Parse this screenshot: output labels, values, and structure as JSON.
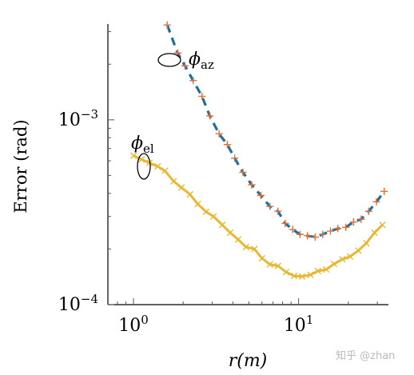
{
  "watermark": "知乎 @zhan",
  "chart_data": {
    "type": "line",
    "xscale": "log",
    "yscale": "log",
    "xlim": [
      0.7,
      35
    ],
    "ylim": [
      0.0001,
      0.0033
    ],
    "xlabel": "r(m)",
    "ylabel": "Error (rad)",
    "x_ticks": [
      {
        "value": 1,
        "base": "10",
        "exp": "0"
      },
      {
        "value": 10,
        "base": "10",
        "exp": "1"
      }
    ],
    "y_ticks": [
      {
        "value": 0.001,
        "base": "10",
        "exp": "−3"
      },
      {
        "value": 0.0001,
        "base": "10",
        "exp": "−4"
      }
    ],
    "grid": false,
    "colors": {
      "az_line": "#1f6f9f",
      "az_marker": "#e0703a",
      "el": "#e8b830"
    },
    "annotations": [
      {
        "series": "az",
        "symbol": "ϕ",
        "subscript": "az"
      },
      {
        "series": "el",
        "symbol": "ϕ",
        "subscript": "el"
      }
    ],
    "series": [
      {
        "id": "az",
        "line_style": "dashed",
        "marker": "plus",
        "x": [
          1.6,
          1.85,
          2.05,
          2.3,
          2.6,
          2.9,
          3.3,
          3.7,
          4.1,
          4.6,
          5.2,
          5.9,
          6.7,
          7.5,
          8.3,
          9.2,
          10.2,
          11.3,
          12.6,
          14.0,
          15.6,
          17.3,
          19.3,
          21.5,
          23.9,
          26.6,
          29.6,
          33.0
        ],
        "y": [
          0.00326,
          0.0023,
          0.00196,
          0.00163,
          0.00134,
          0.00105,
          0.00084,
          0.000735,
          0.00062,
          0.00052,
          0.000445,
          0.00039,
          0.00034,
          0.00032,
          0.000275,
          0.000255,
          0.00024,
          0.000236,
          0.000232,
          0.00024,
          0.00025,
          0.000258,
          0.000262,
          0.00028,
          0.00029,
          0.00032,
          0.00036,
          0.00041
        ]
      },
      {
        "id": "el",
        "line_style": "solid",
        "marker": "x",
        "x": [
          1.0,
          1.12,
          1.25,
          1.4,
          1.55,
          1.75,
          1.95,
          2.2,
          2.45,
          2.75,
          3.05,
          3.45,
          3.85,
          4.3,
          4.8,
          5.4,
          6.0,
          6.7,
          7.5,
          8.4,
          9.4,
          10.5,
          11.8,
          13.1,
          14.7,
          16.4,
          18.4,
          20.5,
          23.0,
          25.7,
          28.8,
          32.2
        ],
        "y": [
          0.00064,
          0.00061,
          0.000585,
          0.00056,
          0.00053,
          0.000465,
          0.00043,
          0.000395,
          0.00035,
          0.000318,
          0.0003,
          0.00027,
          0.000245,
          0.000225,
          0.000205,
          0.0002,
          0.000178,
          0.000165,
          0.000162,
          0.00015,
          0.000143,
          0.000142,
          0.000145,
          0.000152,
          0.000155,
          0.000166,
          0.000176,
          0.000182,
          0.000196,
          0.000215,
          0.000245,
          0.00027
        ]
      }
    ]
  }
}
